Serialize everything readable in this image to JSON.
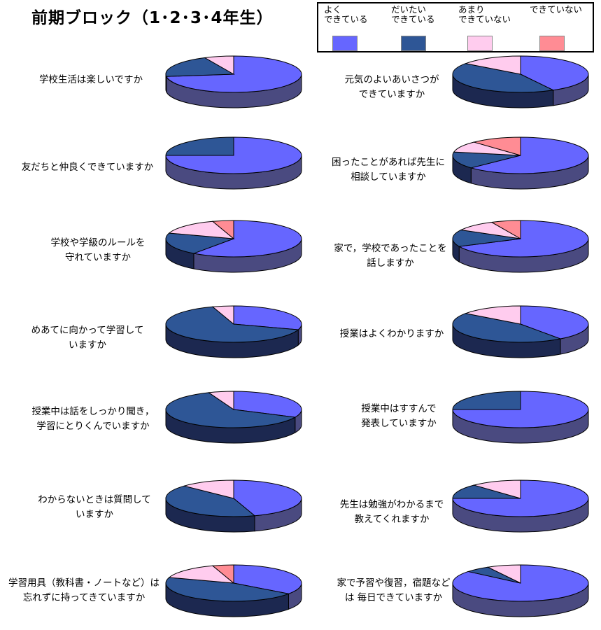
{
  "title": "前期ブロック（1･2･3･4年生）",
  "legend": [
    {
      "label": "よく\nできている",
      "color": "#6666ff"
    },
    {
      "label": "だいたい\nできている",
      "color": "#2e5696"
    },
    {
      "label": "あまり\nできていない",
      "color": "#ffccee"
    },
    {
      "label": "できていない",
      "color": "#ff8c94"
    }
  ],
  "chart_data": {
    "type": "pie",
    "title": "前期ブロック（1･2･3･4年生）",
    "series_names": [
      "よく できている",
      "だいたい できている",
      "あまり できていない",
      "できていない"
    ],
    "colors": [
      "#6666ff",
      "#2e5696",
      "#ffccee",
      "#ff8c94"
    ],
    "pies": [
      {
        "question": "学校生活は楽しいですか",
        "values": [
          73,
          20,
          7,
          0
        ]
      },
      {
        "question": "友だちと仲良くできていますか",
        "values": [
          75,
          25,
          0,
          0
        ]
      },
      {
        "question": "学校や学級のルールを\n守れていますか",
        "values": [
          60,
          20,
          15,
          5
        ]
      },
      {
        "question": "めあてに向かって学習して\nいますか",
        "values": [
          30,
          65,
          5,
          0
        ]
      },
      {
        "question": "授業中は話をしっかり聞き，\n学習にとりくんでいますか",
        "values": [
          32,
          62,
          6,
          0
        ]
      },
      {
        "question": "わからないときは質問して\nいますか",
        "values": [
          45,
          42,
          13,
          0
        ]
      },
      {
        "question": "学習用具（教科書・ノートなど）は\n忘れずに持ってきていますか",
        "values": [
          35,
          45,
          15,
          5
        ]
      },
      {
        "question": "元気のよいあいさつが\nできていますか",
        "values": [
          42,
          43,
          15,
          0
        ]
      },
      {
        "question": "困ったことがあれば先生に\n相談していますか",
        "values": [
          63,
          15,
          10,
          12
        ]
      },
      {
        "question": "家で，学校であったことを\n話しますか",
        "values": [
          68,
          15,
          10,
          7
        ]
      },
      {
        "question": "授業はよくわかりますか",
        "values": [
          40,
          45,
          15,
          0
        ]
      },
      {
        "question": "授業中はすすんで\n発表していますか",
        "values": [
          75,
          25,
          0,
          0
        ]
      },
      {
        "question": "先生は勉強がわかるまで\n教えてくれますか",
        "values": [
          75,
          13,
          12,
          0
        ]
      },
      {
        "question": "家で予習や復習，宿題など\nは 毎日できていますか",
        "values": [
          86,
          6,
          8,
          0
        ]
      }
    ]
  }
}
